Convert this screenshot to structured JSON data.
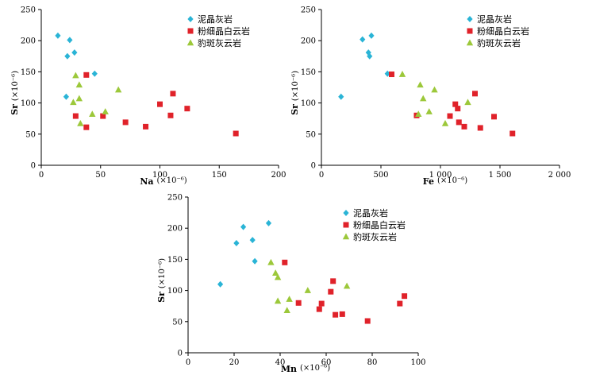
{
  "colors": {
    "series_1": "#2ab4d6",
    "series_2": "#e0222a",
    "series_3": "#9cc83a",
    "axis": "#000000"
  },
  "legend_labels": [
    "泥晶灰岩",
    "粉细晶白云岩",
    "豹斑灰云岩"
  ],
  "chart_data": [
    {
      "type": "scatter",
      "xlabel": "Na",
      "xunit": "(×10⁻⁶)",
      "ylabel": "Sr",
      "yunit": "(×10⁻⁶)",
      "xlim": [
        0,
        200
      ],
      "ylim": [
        0,
        250
      ],
      "xticks": [
        "0",
        "50",
        "100",
        "150",
        "200"
      ],
      "yticks": [
        "0",
        "50",
        "100",
        "150",
        "200",
        "250"
      ],
      "legend_position": "top-right",
      "series": [
        {
          "name": "泥晶灰岩",
          "marker": "diamond",
          "points": [
            [
              14,
              208
            ],
            [
              24,
              201
            ],
            [
              28,
              181
            ],
            [
              22,
              175
            ],
            [
              45,
              147
            ],
            [
              21,
              110
            ]
          ]
        },
        {
          "name": "粉细晶白云岩",
          "marker": "square",
          "points": [
            [
              38,
              145
            ],
            [
              111,
              115
            ],
            [
              100,
              98
            ],
            [
              123,
              91
            ],
            [
              29,
              79
            ],
            [
              52,
              79
            ],
            [
              109,
              80
            ],
            [
              71,
              69
            ],
            [
              88,
              62
            ],
            [
              38,
              61
            ],
            [
              164,
              51
            ]
          ]
        },
        {
          "name": "豹斑灰云岩",
          "marker": "triangle",
          "points": [
            [
              29,
              144
            ],
            [
              32,
              129
            ],
            [
              65,
              121
            ],
            [
              32,
              107
            ],
            [
              27,
              101
            ],
            [
              54,
              86
            ],
            [
              43,
              82
            ],
            [
              33,
              67
            ]
          ]
        }
      ]
    },
    {
      "type": "scatter",
      "xlabel": "Fe",
      "xunit": "(×10⁻⁶)",
      "ylabel": "Sr",
      "yunit": "(×10⁻⁶)",
      "xlim": [
        0,
        2000
      ],
      "ylim": [
        0,
        250
      ],
      "xticks": [
        "0",
        "500",
        "1 000",
        "1 500",
        "2 000"
      ],
      "yticks": [
        "0",
        "50",
        "100",
        "150",
        "200",
        "250"
      ],
      "legend_position": "top-right",
      "series": [
        {
          "name": "泥晶灰岩",
          "marker": "diamond",
          "points": [
            [
              345,
              202
            ],
            [
              420,
              208
            ],
            [
              395,
              181
            ],
            [
              405,
              175
            ],
            [
              555,
              147
            ],
            [
              165,
              110
            ]
          ]
        },
        {
          "name": "粉细晶白云岩",
          "marker": "square",
          "points": [
            [
              590,
              146
            ],
            [
              1290,
              115
            ],
            [
              1125,
              98
            ],
            [
              1145,
              91
            ],
            [
              1080,
              79
            ],
            [
              800,
              80
            ],
            [
              1450,
              78
            ],
            [
              1155,
              69
            ],
            [
              1200,
              62
            ],
            [
              1335,
              60
            ],
            [
              1605,
              51
            ]
          ]
        },
        {
          "name": "豹斑灰云岩",
          "marker": "triangle",
          "points": [
            [
              680,
              146
            ],
            [
              830,
              129
            ],
            [
              950,
              121
            ],
            [
              855,
              107
            ],
            [
              1230,
              101
            ],
            [
              905,
              86
            ],
            [
              815,
              82
            ],
            [
              1040,
              67
            ]
          ]
        }
      ]
    },
    {
      "type": "scatter",
      "xlabel": "Mn",
      "xunit": "(×10⁻⁶)",
      "ylabel": "Sr",
      "yunit": "(×10⁻⁶)",
      "xlim": [
        0,
        100
      ],
      "ylim": [
        0,
        250
      ],
      "xticks": [
        "0",
        "20",
        "40",
        "60",
        "80",
        "100"
      ],
      "yticks": [
        "0",
        "50",
        "100",
        "150",
        "200",
        "250"
      ],
      "legend_position": "top-right",
      "series": [
        {
          "name": "泥晶灰岩",
          "marker": "diamond",
          "points": [
            [
              24,
              202
            ],
            [
              35,
              208
            ],
            [
              28,
              181
            ],
            [
              21,
              176
            ],
            [
              29,
              147
            ],
            [
              14,
              110
            ]
          ]
        },
        {
          "name": "粉细晶白云岩",
          "marker": "square",
          "points": [
            [
              42,
              145
            ],
            [
              63,
              115
            ],
            [
              62,
              98
            ],
            [
              94,
              91
            ],
            [
              58,
              79
            ],
            [
              92,
              79
            ],
            [
              48,
              80
            ],
            [
              57,
              70
            ],
            [
              67,
              62
            ],
            [
              64,
              61
            ],
            [
              78,
              51
            ]
          ]
        },
        {
          "name": "豹斑灰云岩",
          "marker": "triangle",
          "points": [
            [
              36,
              145
            ],
            [
              38,
              128
            ],
            [
              39,
              121
            ],
            [
              69,
              107
            ],
            [
              52,
              100
            ],
            [
              44,
              86
            ],
            [
              39,
              83
            ],
            [
              43,
              68
            ]
          ]
        }
      ]
    }
  ]
}
